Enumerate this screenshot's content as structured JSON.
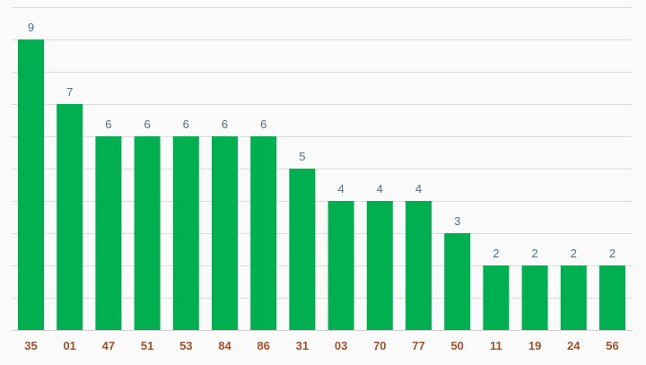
{
  "chart_data": {
    "type": "bar",
    "categories": [
      "35",
      "01",
      "47",
      "51",
      "53",
      "84",
      "86",
      "31",
      "03",
      "70",
      "77",
      "50",
      "11",
      "19",
      "24",
      "56"
    ],
    "values": [
      9,
      7,
      6,
      6,
      6,
      6,
      6,
      5,
      4,
      4,
      4,
      3,
      2,
      2,
      2,
      2
    ],
    "title": "",
    "xlabel": "",
    "ylabel": "",
    "ylim": [
      0,
      10
    ],
    "grid": true,
    "legend": "none",
    "data_labels": true,
    "colors": {
      "bar": "#00b050",
      "value_label": "#4f6f86",
      "tick_label": "#a0522d",
      "grid": "#dcdcdc",
      "background": "#fafafa"
    }
  }
}
